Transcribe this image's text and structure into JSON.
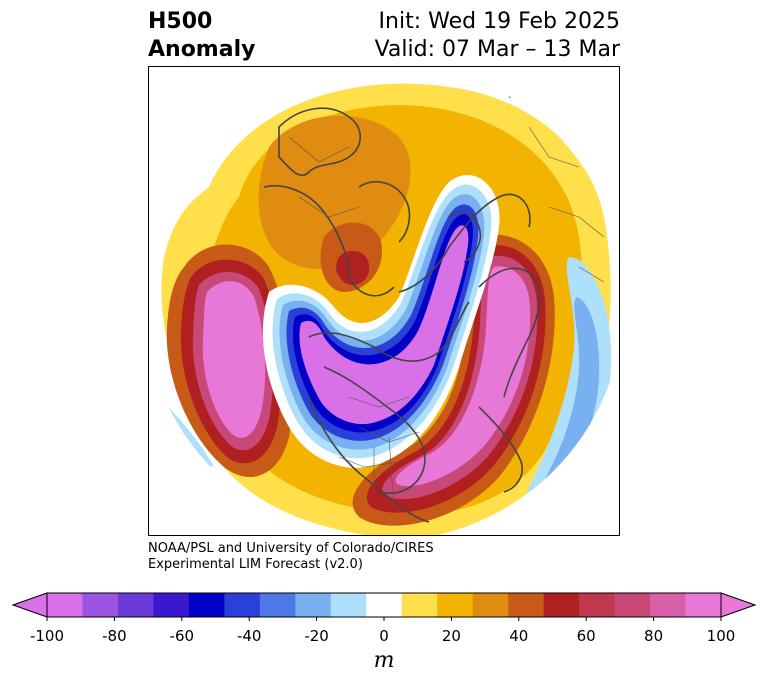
{
  "title": {
    "line1": "H500",
    "line2": "Anomaly"
  },
  "dates": {
    "init": "Init: Wed 19 Feb 2025",
    "valid": "Valid: 07 Mar – 13 Mar"
  },
  "credit": {
    "line1": "NOAA/PSL and University of Colorado/CIRES",
    "line2": "Experimental LIM Forecast (v2.0)"
  },
  "colorbar": {
    "unit": "m",
    "ticks": [
      "-100",
      "-80",
      "-60",
      "-40",
      "-20",
      "0",
      "20",
      "40",
      "60",
      "80",
      "100"
    ],
    "levels": [
      -100,
      -90,
      -80,
      -70,
      -60,
      -50,
      -40,
      -30,
      -20,
      -10,
      10,
      20,
      30,
      40,
      50,
      60,
      70,
      80,
      90,
      100
    ],
    "colors": [
      "#d870e8",
      "#9c55e0",
      "#6a3ad8",
      "#3b18d0",
      "#0000c8",
      "#2a40d8",
      "#4e78e8",
      "#78b0f0",
      "#aee0fc",
      "#ffffff",
      "#ffe04a",
      "#f2b400",
      "#e08c10",
      "#c85a18",
      "#b02020",
      "#c03850",
      "#c84878",
      "#d860a8",
      "#e878d8"
    ],
    "extend_low": "#d870e8",
    "extend_high": "#e878d8"
  }
}
